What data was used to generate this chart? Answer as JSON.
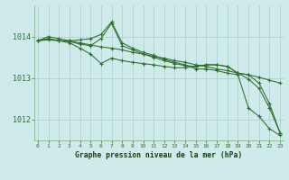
{
  "title": "Graphe pression niveau de la mer (hPa)",
  "background_color": "#ceeaea",
  "grid_color": "#a8cccc",
  "line_color": "#2d6e2d",
  "x_labels": [
    "0",
    "1",
    "2",
    "3",
    "4",
    "5",
    "6",
    "7",
    "8",
    "9",
    "10",
    "11",
    "12",
    "13",
    "14",
    "15",
    "16",
    "17",
    "18",
    "19",
    "20",
    "21",
    "22",
    "23"
  ],
  "ylim": [
    1011.5,
    1014.75
  ],
  "yticks": [
    1012,
    1013,
    1014
  ],
  "series": [
    [
      1013.9,
      1013.92,
      1013.9,
      1013.9,
      1013.92,
      1013.95,
      1014.05,
      1014.35,
      1013.85,
      1013.72,
      1013.62,
      1013.55,
      1013.45,
      1013.38,
      1013.32,
      1013.22,
      1013.22,
      1013.18,
      1013.12,
      1013.08,
      1012.28,
      1012.08,
      1011.78,
      1011.62
    ],
    [
      1013.9,
      1014.0,
      1013.95,
      1013.9,
      1013.85,
      1013.8,
      1013.75,
      1013.72,
      1013.68,
      1013.62,
      1013.58,
      1013.52,
      1013.48,
      1013.42,
      1013.38,
      1013.32,
      1013.28,
      1013.22,
      1013.18,
      1013.12,
      1013.08,
      1013.02,
      1012.95,
      1012.88
    ],
    [
      1013.9,
      1013.95,
      1013.9,
      1013.88,
      1013.82,
      1013.78,
      1013.95,
      1014.32,
      1013.78,
      1013.68,
      1013.58,
      1013.5,
      1013.42,
      1013.35,
      1013.3,
      1013.28,
      1013.32,
      1013.32,
      1013.28,
      1013.12,
      1012.98,
      1012.75,
      1012.28,
      1011.68
    ],
    [
      1013.9,
      1013.95,
      1013.9,
      1013.85,
      1013.72,
      1013.58,
      1013.35,
      1013.48,
      1013.42,
      1013.38,
      1013.35,
      1013.32,
      1013.28,
      1013.25,
      1013.25,
      1013.28,
      1013.32,
      1013.32,
      1013.28,
      1013.12,
      1013.08,
      1012.88,
      1012.38,
      1011.68
    ]
  ]
}
